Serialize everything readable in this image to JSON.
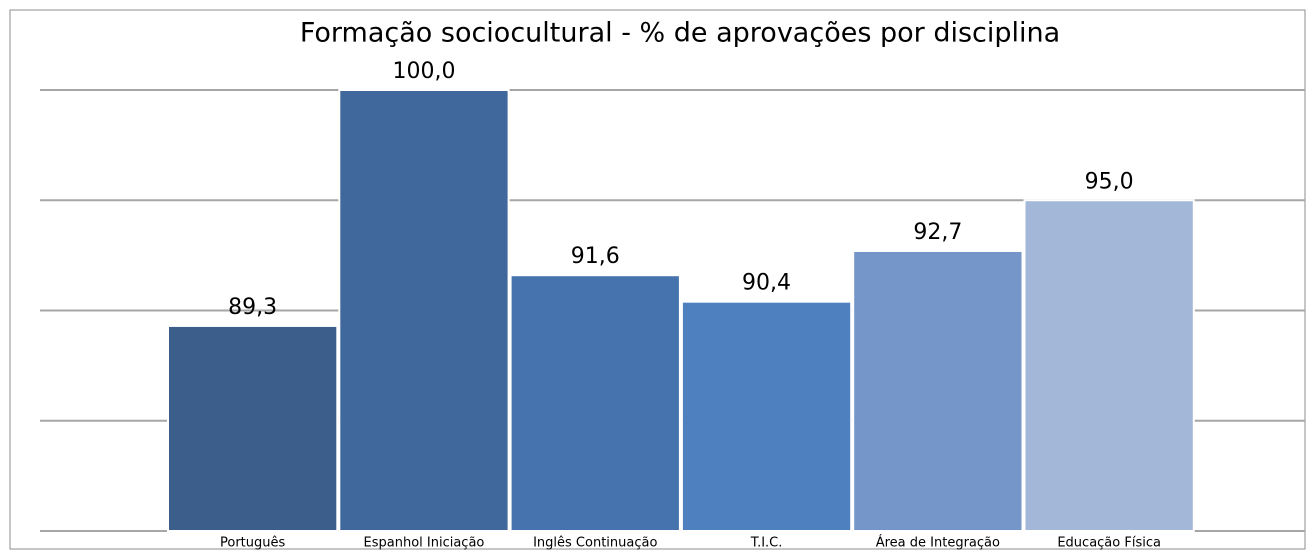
{
  "chart_data": {
    "type": "bar",
    "title": "Formação sociocultural - % de aprovações por disciplina",
    "categories": [
      "Português",
      "Espanhol Iniciação",
      "Inglês Continuação",
      "T.I.C.",
      "Área de Integração",
      "Educação Física"
    ],
    "values": [
      89.3,
      100.0,
      91.6,
      90.4,
      92.7,
      95.0
    ],
    "value_labels": [
      "89,3",
      "100,0",
      "91,6",
      "90,4",
      "92,7",
      "95,0"
    ],
    "colors": [
      "#3b5e8b",
      "#41689c",
      "#4673ad",
      "#4e7fbf",
      "#7596c8",
      "#a3b7d9"
    ],
    "ylim": [
      80,
      100
    ],
    "yticks": [
      80,
      85,
      90,
      95,
      100
    ],
    "grid": true
  }
}
